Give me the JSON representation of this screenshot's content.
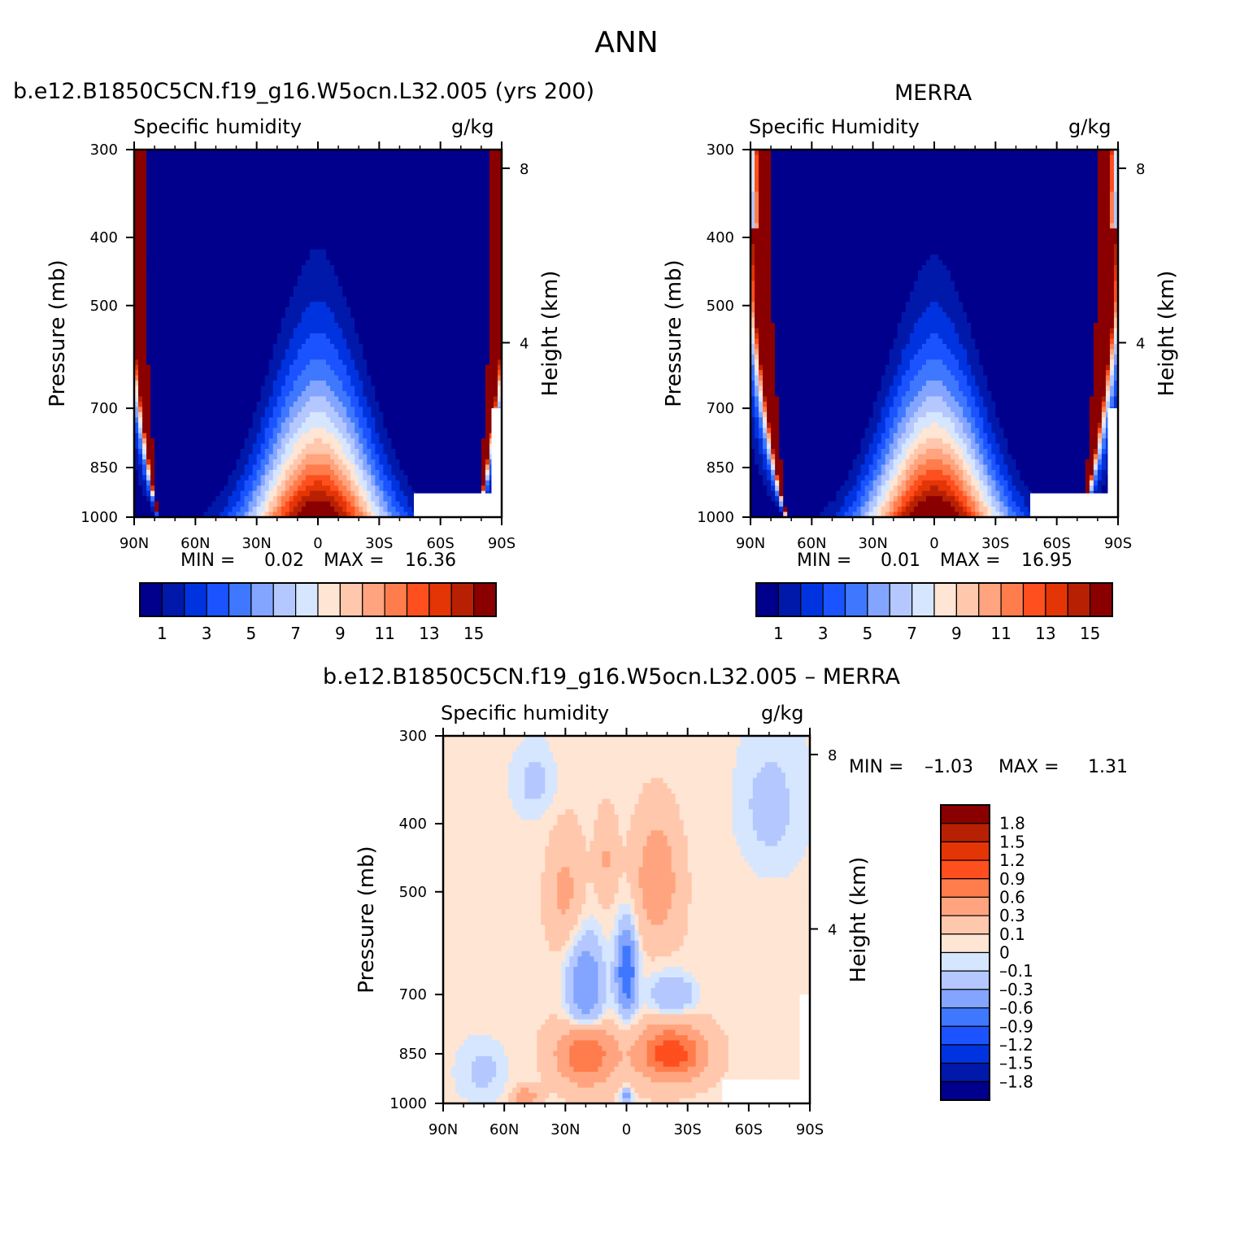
{
  "figure": {
    "title": "ANN"
  },
  "chart_data": [
    {
      "type": "heatmap",
      "panel": "model",
      "header": "b.e12.B1850C5CN.f19_g16.W5ocn.L32.005 (yrs 200)",
      "left_label": "Specific humidity",
      "right_label": "g/kg",
      "ylabel": "Pressure (mb)",
      "y2label": "Height (km)",
      "xticks": [
        "90N",
        "60N",
        "30N",
        "0",
        "30S",
        "60S",
        "90S"
      ],
      "xlim": [
        90,
        -90
      ],
      "yticks": [
        300,
        400,
        500,
        700,
        850,
        1000
      ],
      "ylim": [
        1000,
        300
      ],
      "y2ticks": [
        8,
        4
      ],
      "stats": {
        "min_label": "MIN =",
        "min": "0.02",
        "max_label": "MAX =",
        "max": "16.36"
      },
      "max_value": 16.36,
      "peak_pressure": 375,
      "cb_levels": [
        1,
        2,
        3,
        4,
        5,
        6,
        7,
        8,
        9,
        10,
        11,
        12,
        13,
        14,
        15
      ],
      "cb_labels": [
        "1",
        "3",
        "5",
        "7",
        "9",
        "11",
        "13",
        "15"
      ]
    },
    {
      "type": "heatmap",
      "panel": "obs",
      "header": "MERRA",
      "left_label": "Specific Humidity",
      "right_label": "g/kg",
      "ylabel": "Pressure (mb)",
      "y2label": "Height (km)",
      "xticks": [
        "90N",
        "60N",
        "30N",
        "0",
        "30S",
        "60S",
        "90S"
      ],
      "xlim": [
        90,
        -90
      ],
      "yticks": [
        300,
        400,
        500,
        700,
        850,
        1000
      ],
      "ylim": [
        1000,
        300
      ],
      "y2ticks": [
        8,
        4
      ],
      "stats": {
        "min_label": "MIN =",
        "min": "0.01",
        "max_label": "MAX =",
        "max": "16.95"
      },
      "max_value": 16.95,
      "peak_pressure": 385,
      "cb_levels": [
        1,
        2,
        3,
        4,
        5,
        6,
        7,
        8,
        9,
        10,
        11,
        12,
        13,
        14,
        15
      ],
      "cb_labels": [
        "1",
        "3",
        "5",
        "7",
        "9",
        "11",
        "13",
        "15"
      ]
    },
    {
      "type": "heatmap",
      "panel": "diff",
      "header": "b.e12.B1850C5CN.f19_g16.W5ocn.L32.005 – MERRA",
      "left_label": "Specific humidity",
      "right_label": "g/kg",
      "ylabel": "Pressure (mb)",
      "y2label": "Height (km)",
      "xticks": [
        "90N",
        "60N",
        "30N",
        "0",
        "30S",
        "60S",
        "90S"
      ],
      "xlim": [
        90,
        -90
      ],
      "yticks": [
        300,
        400,
        500,
        700,
        850,
        1000
      ],
      "ylim": [
        1000,
        300
      ],
      "y2ticks": [
        8,
        4
      ],
      "stats": {
        "min_label": "MIN =",
        "min": "–1.03",
        "max_label": "MAX =",
        "max": "1.31"
      },
      "cb_levels": [
        -1.8,
        -1.5,
        -1.2,
        -0.9,
        -0.6,
        -0.3,
        -0.1,
        0,
        0.1,
        0.3,
        0.6,
        0.9,
        1.2,
        1.5,
        1.8
      ],
      "cb_labels": [
        "1.8",
        "1.5",
        "1.2",
        "0.9",
        "0.6",
        "0.3",
        "0.1",
        "0",
        "–0.1",
        "–0.3",
        "–0.6",
        "–0.9",
        "–1.2",
        "–1.5",
        "–1.8"
      ],
      "anomalies": [
        {
          "lat": 20,
          "p": 850,
          "amp": 0.85,
          "slat": 13,
          "sp": 80
        },
        {
          "lat": -22,
          "p": 850,
          "amp": 1.05,
          "slat": 15,
          "sp": 70
        },
        {
          "lat": -15,
          "p": 480,
          "amp": 0.45,
          "slat": 10,
          "sp": 90
        },
        {
          "lat": 30,
          "p": 500,
          "amp": 0.3,
          "slat": 8,
          "sp": 90
        },
        {
          "lat": 10,
          "p": 450,
          "amp": 0.25,
          "slat": 5,
          "sp": 60
        },
        {
          "lat": 0,
          "p": 650,
          "amp": -1.0,
          "slat": 5,
          "sp": 90
        },
        {
          "lat": 20,
          "p": 690,
          "amp": -0.7,
          "slat": 9,
          "sp": 110
        },
        {
          "lat": -22,
          "p": 700,
          "amp": -0.4,
          "slat": 12,
          "sp": 50
        },
        {
          "lat": 45,
          "p": 350,
          "amp": -0.2,
          "slat": 10,
          "sp": 40
        },
        {
          "lat": -70,
          "p": 380,
          "amp": -0.2,
          "slat": 15,
          "sp": 80
        },
        {
          "lat": 70,
          "p": 900,
          "amp": -0.2,
          "slat": 12,
          "sp": 90
        },
        {
          "lat": 0,
          "p": 980,
          "amp": -0.5,
          "slat": 3,
          "sp": 30
        },
        {
          "lat": 50,
          "p": 980,
          "amp": 0.5,
          "slat": 6,
          "sp": 30
        },
        {
          "lat": 0,
          "p": 800,
          "amp": 0.1,
          "slat": 90,
          "sp": 600
        }
      ]
    }
  ],
  "colors": {
    "abs_fill": [
      "#00008c",
      "#0019aa",
      "#0033e0",
      "#1a53ff",
      "#3f78ff",
      "#83a5ff",
      "#b4c8ff",
      "#d6e6ff",
      "#ffe5d3",
      "#ffc7ac",
      "#ffa47e",
      "#ff7d4c",
      "#ff4f1f",
      "#e33506",
      "#b82004",
      "#8a0000"
    ],
    "diff_fill": [
      "#00008c",
      "#0019aa",
      "#0033e0",
      "#1a53ff",
      "#3f78ff",
      "#83a5ff",
      "#b4c8ff",
      "#d6e6ff",
      "#ffe5d3",
      "#ffc7ac",
      "#ffa47e",
      "#ff7d4c",
      "#ff4f1f",
      "#e33506",
      "#b82004",
      "#8a0000"
    ]
  }
}
